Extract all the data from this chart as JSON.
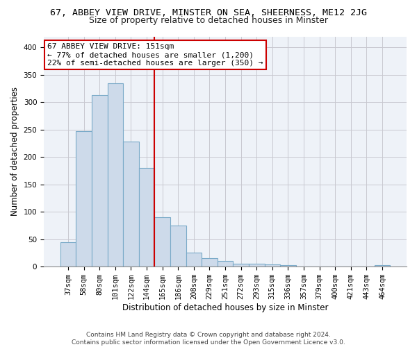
{
  "title": "67, ABBEY VIEW DRIVE, MINSTER ON SEA, SHEERNESS, ME12 2JG",
  "subtitle": "Size of property relative to detached houses in Minster",
  "xlabel": "Distribution of detached houses by size in Minster",
  "ylabel": "Number of detached properties",
  "footer_line1": "Contains HM Land Registry data © Crown copyright and database right 2024.",
  "footer_line2": "Contains public sector information licensed under the Open Government Licence v3.0.",
  "bin_labels": [
    "37sqm",
    "58sqm",
    "80sqm",
    "101sqm",
    "122sqm",
    "144sqm",
    "165sqm",
    "186sqm",
    "208sqm",
    "229sqm",
    "251sqm",
    "272sqm",
    "293sqm",
    "315sqm",
    "336sqm",
    "357sqm",
    "379sqm",
    "400sqm",
    "421sqm",
    "443sqm",
    "464sqm"
  ],
  "bar_heights": [
    44,
    247,
    313,
    335,
    228,
    180,
    90,
    75,
    25,
    16,
    10,
    5,
    5,
    4,
    3,
    0,
    0,
    0,
    0,
    0,
    3
  ],
  "bar_color": "#cddaea",
  "bar_edge_color": "#7aaac8",
  "annotation_line1": "67 ABBEY VIEW DRIVE: 151sqm",
  "annotation_line2": "← 77% of detached houses are smaller (1,200)",
  "annotation_line3": "22% of semi-detached houses are larger (350) →",
  "vline_color": "#cc0000",
  "ylim": [
    0,
    420
  ],
  "yticks": [
    0,
    50,
    100,
    150,
    200,
    250,
    300,
    350,
    400
  ],
  "grid_color": "#c8c8d0",
  "background_color": "#eef2f8",
  "title_fontsize": 9.5,
  "subtitle_fontsize": 9,
  "axis_label_fontsize": 8.5,
  "tick_fontsize": 7.5,
  "annotation_fontsize": 8
}
